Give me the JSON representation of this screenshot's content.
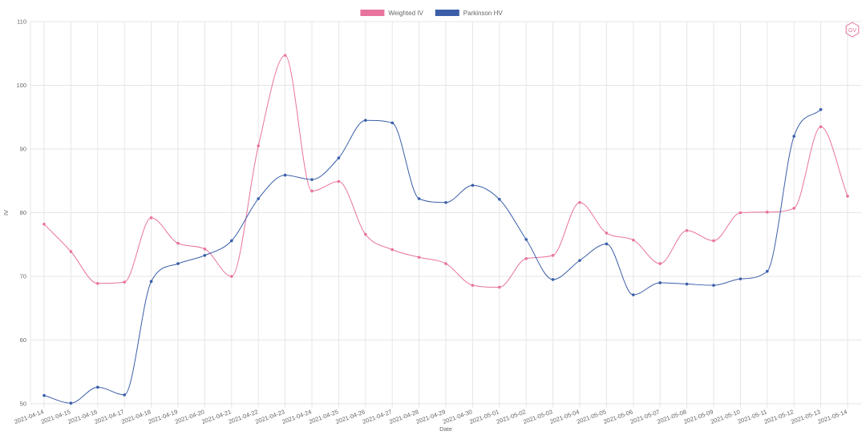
{
  "chart_data": {
    "type": "line",
    "xlabel": "Date",
    "ylabel": "IV",
    "ylim": [
      50,
      110
    ],
    "yticks": [
      50,
      60,
      70,
      80,
      90,
      100,
      110
    ],
    "grid": true,
    "legend_position": "top-center",
    "categories": [
      "2021-04-14",
      "2021-04-15",
      "2021-04-16",
      "2021-04-17",
      "2021-04-18",
      "2021-04-19",
      "2021-04-20",
      "2021-04-21",
      "2021-04-22",
      "2021-04-23",
      "2021-04-24",
      "2021-04-25",
      "2021-04-26",
      "2021-04-27",
      "2021-04-28",
      "2021-04-29",
      "2021-04-30",
      "2021-05-01",
      "2021-05-02",
      "2021-05-03",
      "2021-05-04",
      "2021-05-05",
      "2021-05-06",
      "2021-05-07",
      "2021-05-08",
      "2021-05-09",
      "2021-05-10",
      "2021-05-11",
      "2021-05-12",
      "2021-05-13",
      "2021-05-14"
    ],
    "series": [
      {
        "name": "Weighted IV",
        "color": "#e8739e",
        "values": [
          78.2,
          73.9,
          68.9,
          69.1,
          79.2,
          75.2,
          74.3,
          70.0,
          90.5,
          104.7,
          83.4,
          84.9,
          76.6,
          74.2,
          73.0,
          72.0,
          68.6,
          68.3,
          72.8,
          73.3,
          81.6,
          76.8,
          75.7,
          72.0,
          77.2,
          75.6,
          80.0,
          80.1,
          80.7,
          93.5,
          82.6
        ]
      },
      {
        "name": "Parkinson HV",
        "color": "#3a5ea8",
        "values": [
          51.3,
          50.1,
          52.6,
          51.4,
          69.2,
          72.0,
          73.3,
          75.6,
          82.2,
          85.9,
          85.2,
          88.6,
          94.5,
          94.1,
          82.2,
          81.6,
          84.3,
          82.1,
          75.8,
          69.5,
          72.5,
          75.1,
          67.1,
          69.0,
          68.8,
          68.6,
          69.6,
          70.8,
          92.0,
          96.2,
          null
        ]
      }
    ]
  },
  "watermark": {
    "text": "GV",
    "icon": "gv-hexagon-logo",
    "color": "#e8739e"
  }
}
